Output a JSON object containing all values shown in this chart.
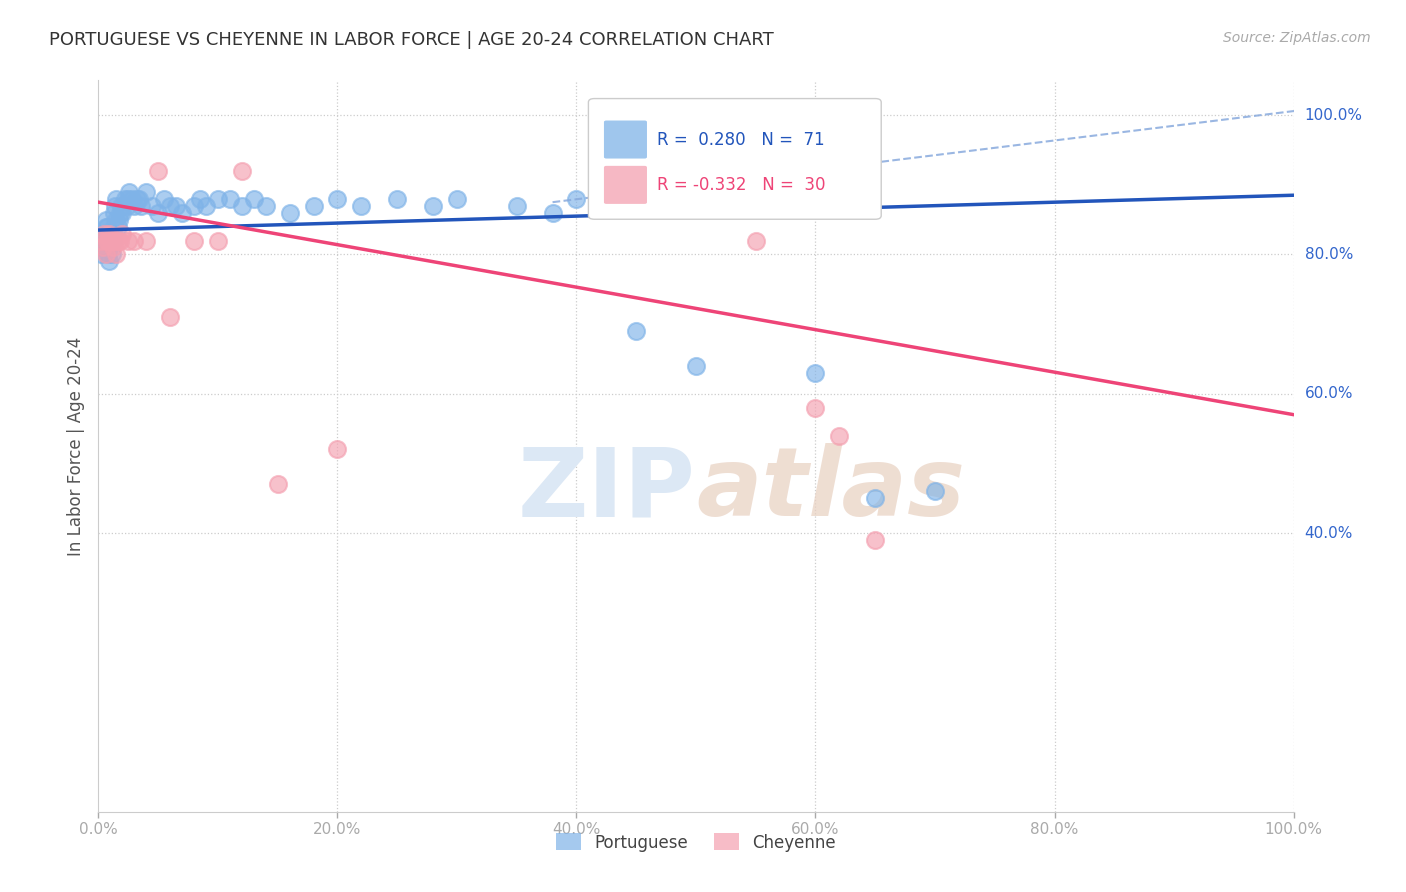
{
  "title": "PORTUGUESE VS CHEYENNE IN LABOR FORCE | AGE 20-24 CORRELATION CHART",
  "source": "Source: ZipAtlas.com",
  "ylabel": "In Labor Force | Age 20-24",
  "background_color": "#ffffff",
  "grid_color": "#cccccc",
  "portuguese_color": "#7fb3e8",
  "cheyenne_color": "#f4a0b0",
  "portuguese_R": 0.28,
  "portuguese_N": 71,
  "cheyenne_R": -0.332,
  "cheyenne_N": 30,
  "portuguese_line_color": "#2255bb",
  "cheyenne_line_color": "#ee4477",
  "dashed_line_color": "#88aadd",
  "watermark_color": "#dce8f5",
  "portuguese_x": [
    0.002,
    0.003,
    0.004,
    0.005,
    0.005,
    0.006,
    0.006,
    0.007,
    0.007,
    0.007,
    0.008,
    0.008,
    0.009,
    0.009,
    0.01,
    0.01,
    0.01,
    0.011,
    0.011,
    0.012,
    0.013,
    0.013,
    0.014,
    0.015,
    0.015,
    0.016,
    0.017,
    0.018,
    0.019,
    0.02,
    0.022,
    0.024,
    0.025,
    0.026,
    0.028,
    0.03,
    0.032,
    0.034,
    0.036,
    0.04,
    0.045,
    0.05,
    0.055,
    0.06,
    0.065,
    0.07,
    0.08,
    0.085,
    0.09,
    0.1,
    0.11,
    0.12,
    0.13,
    0.14,
    0.16,
    0.18,
    0.2,
    0.22,
    0.25,
    0.28,
    0.3,
    0.35,
    0.38,
    0.4,
    0.43,
    0.45,
    0.5,
    0.53,
    0.6,
    0.65,
    0.7
  ],
  "portuguese_y": [
    0.8,
    0.82,
    0.81,
    0.83,
    0.82,
    0.85,
    0.84,
    0.82,
    0.84,
    0.83,
    0.81,
    0.8,
    0.79,
    0.81,
    0.82,
    0.83,
    0.82,
    0.8,
    0.82,
    0.82,
    0.84,
    0.86,
    0.87,
    0.85,
    0.88,
    0.84,
    0.85,
    0.86,
    0.87,
    0.86,
    0.88,
    0.87,
    0.88,
    0.89,
    0.88,
    0.87,
    0.88,
    0.88,
    0.87,
    0.89,
    0.87,
    0.86,
    0.88,
    0.87,
    0.87,
    0.86,
    0.87,
    0.88,
    0.87,
    0.88,
    0.88,
    0.87,
    0.88,
    0.87,
    0.86,
    0.87,
    0.88,
    0.87,
    0.88,
    0.87,
    0.88,
    0.87,
    0.86,
    0.88,
    0.87,
    0.69,
    0.64,
    0.88,
    0.63,
    0.45,
    0.46
  ],
  "cheyenne_x": [
    0.002,
    0.004,
    0.005,
    0.006,
    0.007,
    0.008,
    0.009,
    0.01,
    0.011,
    0.012,
    0.013,
    0.014,
    0.015,
    0.016,
    0.018,
    0.02,
    0.025,
    0.03,
    0.04,
    0.05,
    0.06,
    0.08,
    0.1,
    0.12,
    0.15,
    0.2,
    0.55,
    0.6,
    0.62,
    0.65
  ],
  "cheyenne_y": [
    0.82,
    0.81,
    0.83,
    0.8,
    0.82,
    0.82,
    0.83,
    0.82,
    0.82,
    0.81,
    0.82,
    0.82,
    0.8,
    0.82,
    0.82,
    0.83,
    0.82,
    0.82,
    0.82,
    0.92,
    0.71,
    0.82,
    0.82,
    0.92,
    0.47,
    0.52,
    0.82,
    0.58,
    0.54,
    0.39
  ],
  "xticks": [
    0.0,
    0.2,
    0.4,
    0.6,
    0.8,
    1.0
  ],
  "xtick_labels": [
    "0.0%",
    "20.0%",
    "40.0%",
    "60.0%",
    "80.0%",
    "100.0%"
  ],
  "ytick_right_vals": [
    0.4,
    0.6,
    0.8,
    1.0
  ],
  "ytick_right_labels": [
    "40.0%",
    "60.0%",
    "80.0%",
    "100.0%"
  ],
  "xlim": [
    0.0,
    1.0
  ],
  "ylim": [
    0.0,
    1.05
  ]
}
